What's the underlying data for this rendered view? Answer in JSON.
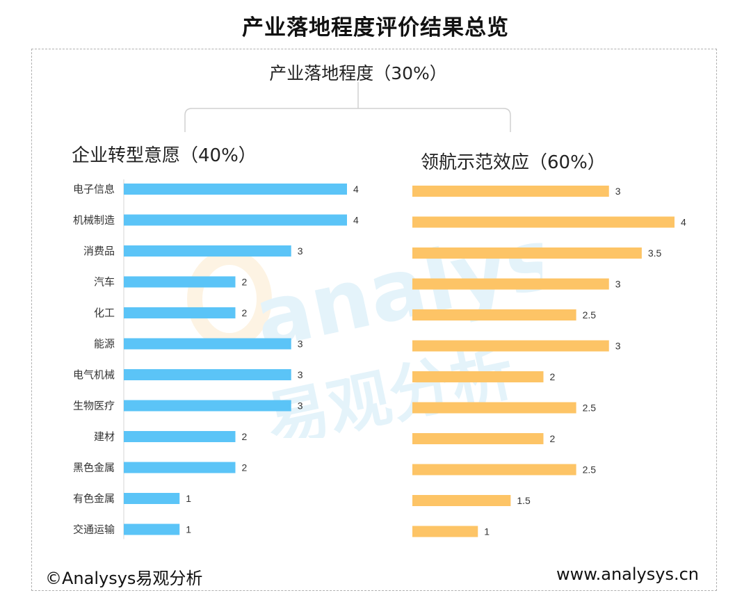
{
  "title": "产业落地程度评价结果总览",
  "root_label": "产业落地程度（30%）",
  "footer": {
    "copyright": "©Analysys易观分析",
    "url": "www.analysys.cn"
  },
  "watermark": {
    "brand": "analysys",
    "cn": "易观分析"
  },
  "colors": {
    "left_bar": "#5bc4f7",
    "right_bar": "#fdc466",
    "connector": "#d0d0d0",
    "frame": "#b0b0b0"
  },
  "chart_data": [
    {
      "type": "bar",
      "orientation": "horizontal",
      "title": "企业转型意愿（40%）",
      "categories": [
        "电子信息",
        "机械制造",
        "消费品",
        "汽车",
        "化工",
        "能源",
        "电气机械",
        "生物医疗",
        "建材",
        "黑色金属",
        "有色金属",
        "交通运输"
      ],
      "values": [
        4,
        4,
        3,
        2,
        2,
        3,
        3,
        3,
        2,
        2,
        1,
        1
      ],
      "xlim": [
        0,
        4
      ],
      "grid": false
    },
    {
      "type": "bar",
      "orientation": "horizontal",
      "title": "领航示范效应（60%）",
      "categories": [
        "电子信息",
        "机械制造",
        "消费品",
        "汽车",
        "化工",
        "能源",
        "电气机械",
        "生物医疗",
        "建材",
        "黑色金属",
        "有色金属",
        "交通运输"
      ],
      "values": [
        3,
        4,
        3.5,
        3,
        2.5,
        3,
        2,
        2.5,
        2,
        2.5,
        1.5,
        1
      ],
      "xlim": [
        0,
        4
      ],
      "grid": false
    }
  ]
}
